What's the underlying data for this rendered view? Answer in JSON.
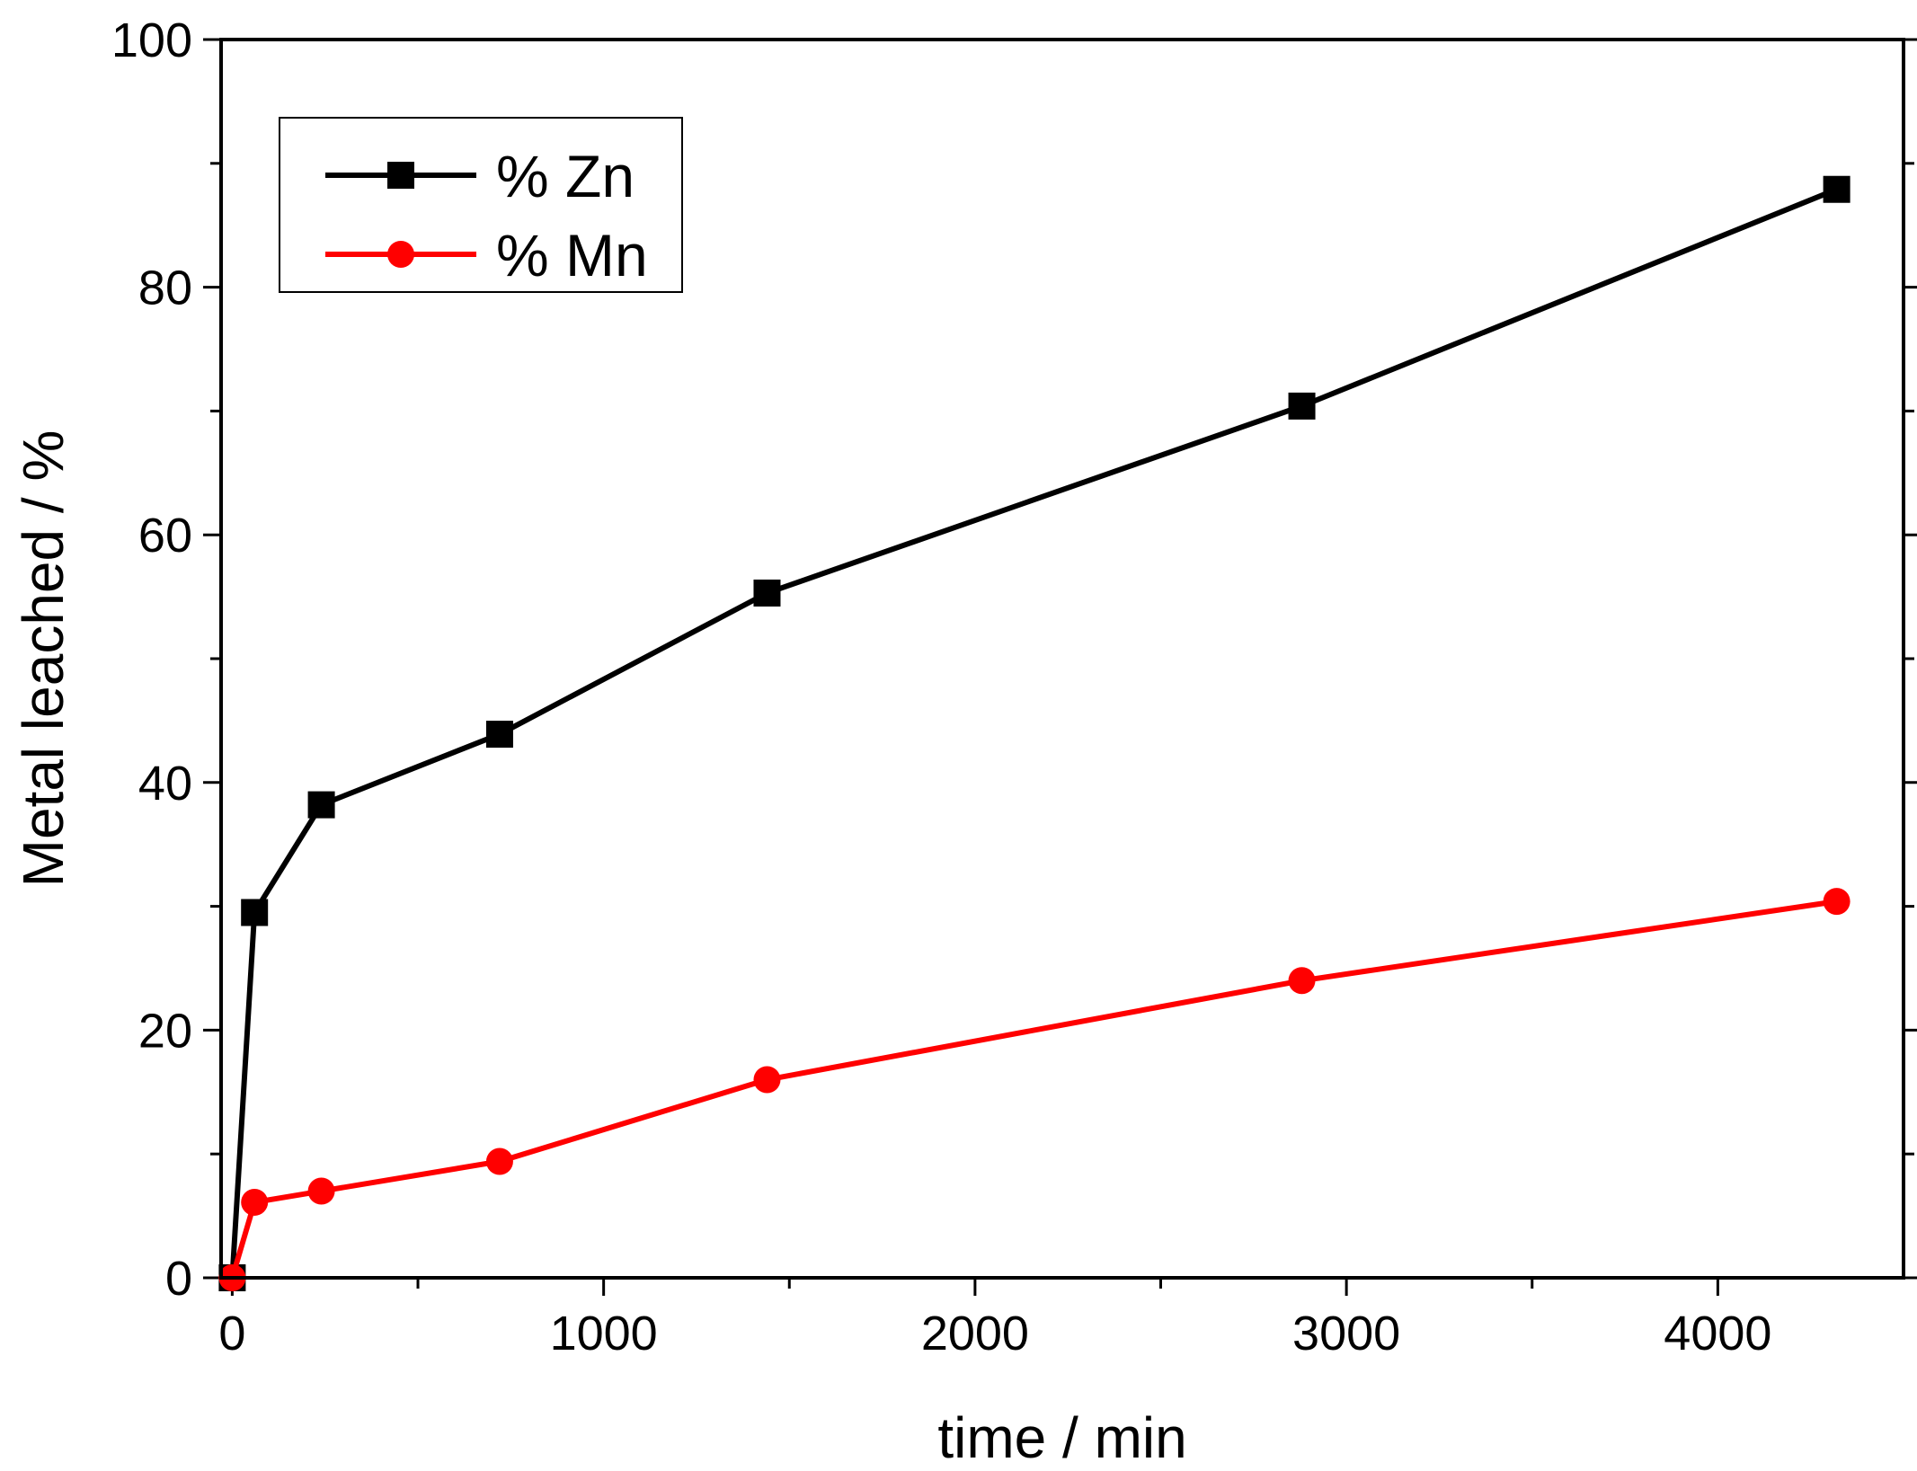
{
  "chart_data": {
    "type": "line",
    "title": "",
    "xlabel": "time / min",
    "ylabel": "Metal leached / %",
    "xlim": [
      -30,
      4500
    ],
    "ylim": [
      0,
      100
    ],
    "x_ticks": [
      0,
      1000,
      2000,
      3000,
      4000
    ],
    "x_ticks_labeled": [
      "0",
      "1000",
      "2000",
      "3000",
      "4000"
    ],
    "x_minor_ticks": [
      500,
      1500,
      2500,
      3500
    ],
    "y_ticks": [
      0,
      20,
      40,
      60,
      80,
      100
    ],
    "y_ticks_labeled": [
      "0",
      "20",
      "40",
      "60",
      "80",
      "100"
    ],
    "y_minor_ticks": [
      10,
      30,
      50,
      70,
      90
    ],
    "grid": false,
    "legend_position": "top-left",
    "series": [
      {
        "name": "% Zn",
        "color": "#000000",
        "marker": "square",
        "x": [
          0,
          60,
          240,
          720,
          1440,
          2880,
          4320
        ],
        "y": [
          0,
          29.5,
          38.2,
          43.9,
          55.3,
          70.4,
          87.9
        ]
      },
      {
        "name": "% Mn",
        "color": "#ff0000",
        "marker": "circle",
        "x": [
          0,
          60,
          240,
          720,
          1440,
          2880,
          4320
        ],
        "y": [
          0,
          6.1,
          7.0,
          9.4,
          16.0,
          24.0,
          30.4
        ]
      }
    ]
  }
}
